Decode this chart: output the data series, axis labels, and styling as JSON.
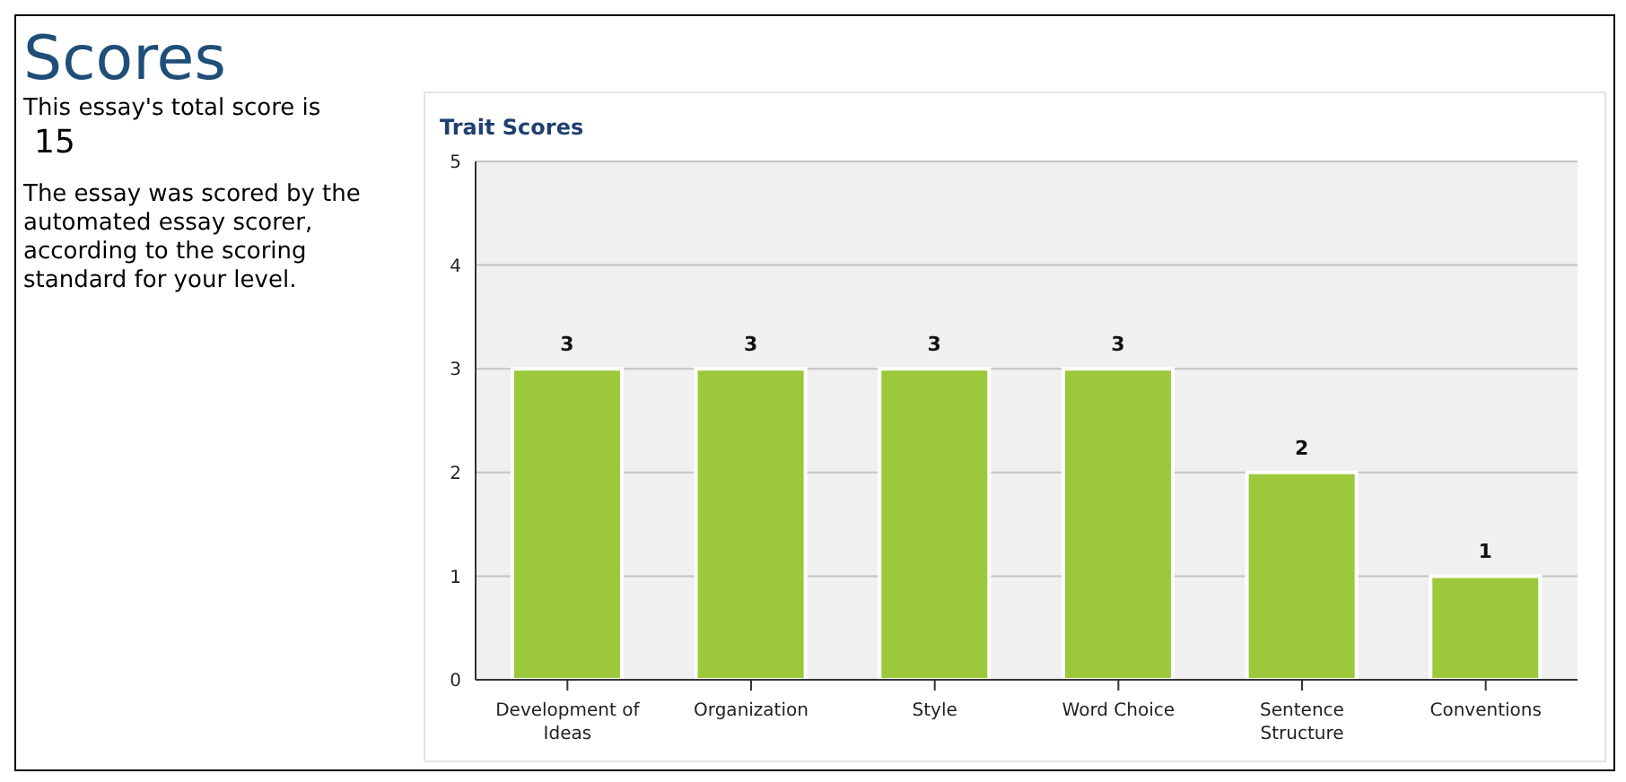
{
  "chart_data": [
    {
      "type": "other",
      "title": "Scores",
      "annotations": [
        "This essay's total score is",
        "15",
        "The essay was scored by the automated essay scorer, according to the scoring standard for your level."
      ]
    },
    {
      "type": "bar",
      "title": "Trait Scores",
      "categories": [
        "Development of Ideas",
        "Organization",
        "Style",
        "Word Choice",
        "Sentence Structure",
        "Conventions"
      ],
      "values": [
        3,
        3,
        3,
        3,
        2,
        1
      ],
      "color": "#9bc93b",
      "ylim": [
        0,
        5
      ],
      "yticks": [
        0,
        1,
        2,
        3,
        4,
        5
      ],
      "grid": "y",
      "data_labels": true
    }
  ]
}
